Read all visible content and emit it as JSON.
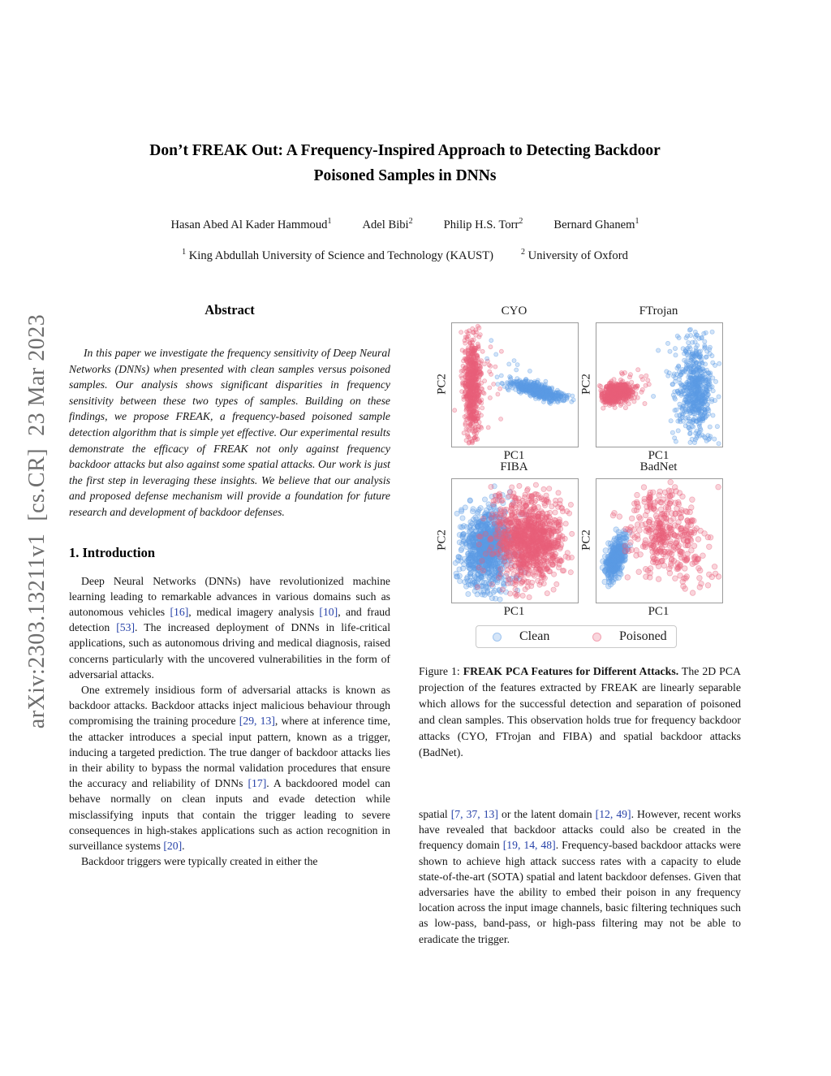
{
  "arxiv_stamp": "arXiv:2303.13211v1  [cs.CR]  23 Mar 2023",
  "colors": {
    "citation": "#2742a8",
    "stamp": "#6e6e6e",
    "clean": "#5b9ce4",
    "poisoned": "#e8607a"
  },
  "header": {
    "title_line1": "Don’t FREAK Out: A Frequency-Inspired Approach to Detecting Backdoor",
    "title_line2": "Poisoned Samples in DNNs",
    "authors": [
      {
        "name": "Hasan Abed Al Kader Hammoud",
        "sup": "1"
      },
      {
        "name": "Adel Bibi",
        "sup": "2"
      },
      {
        "name": "Philip H.S. Torr",
        "sup": "2"
      },
      {
        "name": "Bernard Ghanem",
        "sup": "1"
      }
    ],
    "affiliations": [
      {
        "sup": "1",
        "name": "King Abdullah University of Science and Technology (KAUST)"
      },
      {
        "sup": "2",
        "name": "University of Oxford"
      }
    ]
  },
  "abstract": {
    "heading": "Abstract",
    "text": "In this paper we investigate the frequency sensitivity of Deep Neural Networks (DNNs) when presented with clean samples versus poisoned samples. Our analysis shows significant disparities in frequency sensitivity between these two types of samples. Building on these findings, we propose FREAK, a frequency-based poisoned sample detection algorithm that is simple yet effective. Our experimental results demonstrate the efficacy of FREAK not only against frequency backdoor attacks but also against some spatial attacks. Our work is just the first step in leveraging these insights. We believe that our analysis and proposed defense mechanism will provide a foundation for future research and development of backdoor defenses."
  },
  "introduction": {
    "heading": "1. Introduction",
    "paragraphs": [
      {
        "indent": true,
        "segments": [
          {
            "t": "Deep Neural Networks (DNNs) have revolutionized machine learning leading to remarkable advances in various domains such as autonomous vehicles "
          },
          {
            "c": "[16]"
          },
          {
            "t": ", medical imagery analysis "
          },
          {
            "c": "[10]"
          },
          {
            "t": ", and fraud detection "
          },
          {
            "c": "[53]"
          },
          {
            "t": ". The increased deployment of DNNs in life-critical applications, such as autonomous driving and medical diagnosis, raised concerns particularly with the uncovered vulnerabilities in the form of adversarial attacks."
          }
        ]
      },
      {
        "indent": true,
        "segments": [
          {
            "t": "One extremely insidious form of adversarial attacks is known as backdoor attacks. Backdoor attacks inject malicious behaviour through compromising the training procedure "
          },
          {
            "c": "[29, 13]"
          },
          {
            "t": ", where at inference time, the attacker introduces a special input pattern, known as a trigger, inducing a targeted prediction. The true danger of backdoor attacks lies in their ability to bypass the normal validation procedures that ensure the accuracy and reliability of DNNs "
          },
          {
            "c": "[17]"
          },
          {
            "t": ". A backdoored model can behave normally on clean inputs and evade detection while misclassifying inputs that contain the trigger leading to severe consequences in high-stakes applications such as action recognition in surveillance systems "
          },
          {
            "c": "[20]"
          },
          {
            "t": "."
          }
        ]
      },
      {
        "indent": true,
        "segments": [
          {
            "t": "Backdoor triggers were typically created in either the"
          }
        ]
      }
    ]
  },
  "right_column": {
    "paragraph": {
      "indent": false,
      "segments": [
        {
          "t": "spatial "
        },
        {
          "c": "[7, 37, 13]"
        },
        {
          "t": " or the latent domain "
        },
        {
          "c": "[12, 49]"
        },
        {
          "t": ". However, recent works have revealed that backdoor attacks could also be created in the frequency domain "
        },
        {
          "c": "[19, 14, 48]"
        },
        {
          "t": ". Frequency-based backdoor attacks were shown to achieve high attack success rates with a capacity to elude state-of-the-art (SOTA) spatial and latent backdoor defenses. Given that adversaries have the ability to embed their poison in any frequency location across the input image channels, basic filtering techniques such as low-pass, band-pass, or high-pass filtering may not be able to eradicate the trigger."
        }
      ]
    }
  },
  "figure": {
    "legend": [
      {
        "label": "Clean",
        "series": "clean"
      },
      {
        "label": "Poisoned",
        "series": "poisoned"
      }
    ],
    "caption_segments": [
      {
        "t": "Figure 1: "
      },
      {
        "b": "FREAK PCA Features for Different Attacks."
      },
      {
        "t": " The 2D PCA projection of the features extracted by FREAK are linearly separable which allows for the successful detection and separation of poisoned and clean samples. This observation holds true for frequency backdoor attacks (CYO, FTrojan and FIBA) and spatial backdoor attacks (BadNet)."
      }
    ]
  },
  "chart_data": [
    {
      "type": "scatter",
      "title": "CYO",
      "xlabel": "PC1",
      "ylabel": "PC2",
      "marker_r": 2.5,
      "legend": [
        "Clean",
        "Poisoned"
      ],
      "axes_ticks": "none",
      "clusters": [
        {
          "series": "poisoned",
          "n": 650,
          "cx": 0.16,
          "cy": 0.5,
          "sx": 0.034,
          "sy": 0.21,
          "rot": 0
        },
        {
          "series": "poisoned",
          "n": 35,
          "cx": 0.27,
          "cy": 0.52,
          "sx": 0.085,
          "sy": 0.2,
          "rot": 0
        },
        {
          "series": "clean",
          "n": 12,
          "cx": 0.42,
          "cy": 0.38,
          "sx": 0.11,
          "sy": 0.12,
          "rot": 0
        },
        {
          "series": "clean",
          "n": 520,
          "cx": 0.69,
          "cy": 0.55,
          "sx": 0.11,
          "sy": 0.027,
          "rot": 17
        }
      ]
    },
    {
      "type": "scatter",
      "title": "FTrojan",
      "xlabel": "PC1",
      "ylabel": "PC2",
      "marker_r": 2.6,
      "legend": [
        "Clean",
        "Poisoned"
      ],
      "axes_ticks": "none",
      "clusters": [
        {
          "series": "poisoned",
          "n": 480,
          "cx": 0.155,
          "cy": 0.57,
          "sx": 0.06,
          "sy": 0.04,
          "rot": -10
        },
        {
          "series": "poisoned",
          "n": 60,
          "cx": 0.25,
          "cy": 0.52,
          "sx": 0.08,
          "sy": 0.06,
          "rot": -10
        },
        {
          "series": "clean",
          "n": 560,
          "cx": 0.79,
          "cy": 0.54,
          "sx": 0.065,
          "sy": 0.2,
          "rot": 0
        },
        {
          "series": "clean",
          "n": 80,
          "cx": 0.73,
          "cy": 0.45,
          "sx": 0.12,
          "sy": 0.24,
          "rot": 0
        }
      ]
    },
    {
      "type": "scatter",
      "title": "FIBA",
      "xlabel": "PC1",
      "ylabel": "PC2",
      "marker_r": 3.1,
      "legend": [
        "Clean",
        "Poisoned"
      ],
      "axes_ticks": "none",
      "clusters": [
        {
          "series": "clean",
          "n": 850,
          "cx": 0.28,
          "cy": 0.54,
          "sx": 0.095,
          "sy": 0.15,
          "rot": 6
        },
        {
          "series": "clean",
          "n": 80,
          "cx": 0.28,
          "cy": 0.75,
          "sx": 0.14,
          "sy": 0.1,
          "rot": 0
        },
        {
          "series": "poisoned",
          "n": 900,
          "cx": 0.62,
          "cy": 0.49,
          "sx": 0.14,
          "sy": 0.14,
          "rot": 0
        },
        {
          "series": "poisoned",
          "n": 80,
          "cx": 0.58,
          "cy": 0.22,
          "sx": 0.17,
          "sy": 0.1,
          "rot": 0
        },
        {
          "series": "poisoned",
          "n": 60,
          "cx": 0.62,
          "cy": 0.8,
          "sx": 0.16,
          "sy": 0.09,
          "rot": 0
        }
      ]
    },
    {
      "type": "scatter",
      "title": "BadNet",
      "xlabel": "PC1",
      "ylabel": "PC2",
      "marker_r": 3.3,
      "legend": [
        "Clean",
        "Poisoned"
      ],
      "axes_ticks": "none",
      "clusters": [
        {
          "series": "clean",
          "n": 360,
          "cx": 0.155,
          "cy": 0.63,
          "sx": 0.032,
          "sy": 0.085,
          "rot": 14
        },
        {
          "series": "poisoned",
          "n": 300,
          "cx": 0.55,
          "cy": 0.47,
          "sx": 0.155,
          "sy": 0.15,
          "rot": 20
        },
        {
          "series": "poisoned",
          "n": 45,
          "cx": 0.52,
          "cy": 0.16,
          "sx": 0.13,
          "sy": 0.08,
          "rot": 0
        },
        {
          "series": "poisoned",
          "n": 30,
          "cx": 0.78,
          "cy": 0.7,
          "sx": 0.1,
          "sy": 0.1,
          "rot": 0
        }
      ]
    }
  ]
}
